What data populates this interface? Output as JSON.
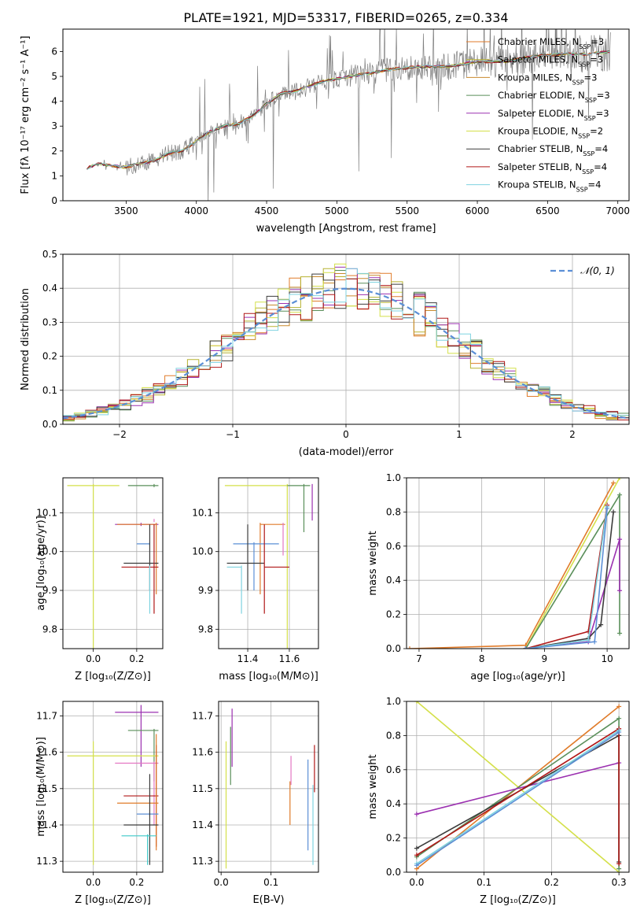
{
  "figure": {
    "title": "PLATE=1921, MJD=53317, FIBERID=0265, z=0.334",
    "series": [
      {
        "name": "Chabrier MILES",
        "nssp": "3",
        "color": "#e07b2a"
      },
      {
        "name": "Salpeter MILES",
        "nssp": "3",
        "color": "#b7b332"
      },
      {
        "name": "Kroupa MILES",
        "nssp": "3",
        "color": "#c98a2e"
      },
      {
        "name": "Chabrier ELODIE",
        "nssp": "3",
        "color": "#5a8f5a"
      },
      {
        "name": "Salpeter ELODIE",
        "nssp": "3",
        "color": "#9b30b0"
      },
      {
        "name": "Kroupa ELODIE",
        "nssp": "2",
        "color": "#d4e04a"
      },
      {
        "name": "Chabrier STELIB",
        "nssp": "4",
        "color": "#3c3c3c"
      },
      {
        "name": "Salpeter STELIB",
        "nssp": "4",
        "color": "#b01818"
      },
      {
        "name": "Kroupa STELIB",
        "nssp": "4",
        "color": "#7fd3e0"
      }
    ],
    "extra_colors": {
      "pink": "#e377c2",
      "blue": "#5b8fd6",
      "cyan": "#3ec9c9"
    }
  },
  "chart_data": [
    {
      "id": "spectrum",
      "type": "line",
      "xlabel": "wavelength [Angstrom, rest frame]",
      "ylabel": "Flux [fλ 10⁻¹⁷ erg cm⁻² s⁻¹ A⁻¹]",
      "xlim": [
        3050,
        7080
      ],
      "ylim": [
        0,
        6.9
      ],
      "xticks": [
        3500,
        4000,
        4500,
        5000,
        5500,
        6000,
        6500,
        7000
      ],
      "yticks": [
        0,
        1,
        2,
        3,
        4,
        5,
        6
      ],
      "data_color": "#808080",
      "model_x": [
        3220,
        3300,
        3400,
        3500,
        3600,
        3700,
        3800,
        3900,
        4000,
        4100,
        4200,
        4300,
        4400,
        4500,
        4600,
        4700,
        4800,
        4900,
        5000,
        5200,
        5400,
        5600,
        5800,
        6000,
        6200,
        6400,
        6600,
        6800,
        6950
      ],
      "model_y": [
        1.3,
        1.5,
        1.4,
        1.35,
        1.5,
        1.6,
        1.9,
        2.0,
        2.4,
        2.8,
        3.0,
        3.1,
        3.4,
        3.9,
        4.3,
        4.4,
        4.6,
        4.8,
        4.9,
        5.1,
        5.3,
        5.4,
        5.4,
        5.6,
        5.6,
        5.8,
        5.9,
        5.9,
        6.0
      ]
    },
    {
      "id": "residuals",
      "type": "line",
      "xlabel": "(data-model)/error",
      "ylabel": "Normed distribution",
      "xlim": [
        -2.5,
        2.5
      ],
      "ylim": [
        0,
        0.5
      ],
      "xticks": [
        -2,
        -1,
        0,
        1,
        2
      ],
      "xticklabels": [
        "−2",
        "−1",
        "0",
        "1",
        "2"
      ],
      "yticks": [
        0,
        0.1,
        0.2,
        0.3,
        0.4,
        0.5
      ],
      "yticklabels": [
        "0.0",
        "0.1",
        "0.2",
        "0.3",
        "0.4",
        "0.5"
      ],
      "gaussian": {
        "label": "𝒩(0, 1)",
        "color": "#5b8fd6",
        "mean": 0,
        "sigma": 1
      },
      "hist_bin_width": 0.1
    },
    {
      "id": "age-vs-Z",
      "type": "scatter",
      "xlabel": "Z [log₁₀(Z/Z⊙)]",
      "ylabel": "age  [log₁₀(age/yr)]",
      "xlim": [
        -0.14,
        0.32
      ],
      "ylim": [
        9.75,
        10.19
      ],
      "xticks": [
        0.0,
        0.2
      ],
      "xticklabels": [
        "0.0",
        "0.2"
      ],
      "yticks": [
        9.8,
        9.9,
        10.0,
        10.1
      ],
      "yticklabels": [
        "9.8",
        "9.9",
        "10.0",
        "10.1"
      ],
      "points": [
        {
          "color": "#d4e04a",
          "x": 0.0,
          "xerr": [
            0.12,
            0.12
          ],
          "y": 10.17,
          "yerr": [
            0.42,
            0.0
          ]
        },
        {
          "color": "#9b30b0",
          "x": 0.22,
          "xerr": [
            0.12,
            0.08
          ],
          "y": 10.07,
          "yerr": [
            0.0,
            0.0
          ]
        },
        {
          "color": "#e07b2a",
          "x": 0.29,
          "xerr": [
            0.18,
            0.0
          ],
          "y": 10.07,
          "yerr": [
            0.18,
            0.0
          ]
        },
        {
          "color": "#5b8fd6",
          "x": 0.26,
          "xerr": [
            0.06,
            0.0
          ],
          "y": 10.02,
          "yerr": [
            0.0,
            0.0
          ]
        },
        {
          "color": "#3c3c3c",
          "x": 0.26,
          "xerr": [
            0.12,
            0.04
          ],
          "y": 9.97,
          "yerr": [
            0.07,
            0.1
          ]
        },
        {
          "color": "#b01818",
          "x": 0.28,
          "xerr": [
            0.15,
            0.02
          ],
          "y": 9.96,
          "yerr": [
            0.12,
            0.11
          ]
        },
        {
          "color": "#5a8f5a",
          "x": 0.28,
          "xerr": [
            0.12,
            0.02
          ],
          "y": 10.17,
          "yerr": [
            0.0,
            0.0
          ]
        },
        {
          "color": "#7fd3e0",
          "x": 0.26,
          "xerr": [
            0.0,
            0.0
          ],
          "y": 9.96,
          "yerr": [
            0.12,
            0.0
          ]
        },
        {
          "color": "#e377c2",
          "x": 0.28,
          "xerr": [
            0.0,
            0.0
          ],
          "y": 10.08,
          "yerr": [
            0.0,
            0.0
          ]
        }
      ]
    },
    {
      "id": "age-vs-mass",
      "type": "scatter",
      "xlabel": "mass [log₁₀(M/M⊙)]",
      "ylabel": "",
      "xlim": [
        11.26,
        11.74
      ],
      "ylim": [
        9.75,
        10.19
      ],
      "xticks": [
        11.4,
        11.6
      ],
      "xticklabels": [
        "11.4",
        "11.6"
      ],
      "yticks": [
        9.8,
        9.9,
        10.0,
        10.1
      ],
      "yticklabels": [
        "9.8",
        "9.9",
        "10.0",
        "10.1"
      ],
      "points": [
        {
          "color": "#d4e04a",
          "x": 11.59,
          "xerr": [
            0.3,
            0.0
          ],
          "y": 10.17,
          "yerr": [
            0.42,
            0.0
          ]
        },
        {
          "color": "#9b30b0",
          "x": 11.71,
          "xerr": [
            0.0,
            0.0
          ],
          "y": 10.17,
          "yerr": [
            0.09,
            0.0
          ]
        },
        {
          "color": "#5a8f5a",
          "x": 11.67,
          "xerr": [
            0.08,
            0.03
          ],
          "y": 10.17,
          "yerr": [
            0.12,
            0.0
          ]
        },
        {
          "color": "#e07b2a",
          "x": 11.46,
          "xerr": [
            0.0,
            0.12
          ],
          "y": 10.07,
          "yerr": [
            0.18,
            0.0
          ]
        },
        {
          "color": "#5b8fd6",
          "x": 11.43,
          "xerr": [
            0.1,
            0.12
          ],
          "y": 10.02,
          "yerr": [
            0.12,
            0.0
          ]
        },
        {
          "color": "#3c3c3c",
          "x": 11.4,
          "xerr": [
            0.1,
            0.08
          ],
          "y": 9.97,
          "yerr": [
            0.07,
            0.1
          ]
        },
        {
          "color": "#b01818",
          "x": 11.48,
          "xerr": [
            0.0,
            0.12
          ],
          "y": 9.96,
          "yerr": [
            0.12,
            0.11
          ]
        },
        {
          "color": "#7fd3e0",
          "x": 11.37,
          "xerr": [
            0.07,
            0.0
          ],
          "y": 9.96,
          "yerr": [
            0.12,
            0.0
          ]
        },
        {
          "color": "#e377c2",
          "x": 11.57,
          "xerr": [
            0.0,
            0.0
          ],
          "y": 10.07,
          "yerr": [
            0.08,
            0.0
          ]
        }
      ]
    },
    {
      "id": "massweight-vs-age",
      "type": "line",
      "xlabel": "age  [log₁₀(age/yr)]",
      "ylabel": "mass weight",
      "xlim": [
        6.8,
        10.35
      ],
      "ylim": [
        0,
        1.0
      ],
      "xticks": [
        7,
        8,
        9,
        10
      ],
      "xticklabels": [
        "7",
        "8",
        "9",
        "10"
      ],
      "yticks": [
        0,
        0.2,
        0.4,
        0.6,
        0.8,
        1.0
      ],
      "yticklabels": [
        "0.0",
        "0.2",
        "0.4",
        "0.6",
        "0.8",
        "1.0"
      ],
      "lines": [
        {
          "color": "#e07b2a",
          "x": [
            6.85,
            8.7,
            10.1
          ],
          "y": [
            0.0,
            0.02,
            0.97
          ]
        },
        {
          "color": "#d4e04a",
          "x": [
            8.7,
            10.2
          ],
          "y": [
            0.0,
            1.0
          ]
        },
        {
          "color": "#5a8f5a",
          "x": [
            8.7,
            10.2,
            10.2
          ],
          "y": [
            0.0,
            0.9,
            0.09
          ]
        },
        {
          "color": "#9b30b0",
          "x": [
            8.7,
            9.7,
            10.2,
            10.2
          ],
          "y": [
            0.0,
            0.04,
            0.64,
            0.34
          ]
        },
        {
          "color": "#3c3c3c",
          "x": [
            8.7,
            9.7,
            9.9,
            10.1
          ],
          "y": [
            0.0,
            0.06,
            0.14,
            0.8
          ]
        },
        {
          "color": "#b01818",
          "x": [
            8.7,
            9.7,
            10.0
          ],
          "y": [
            0.0,
            0.1,
            0.84
          ]
        },
        {
          "color": "#7fd3e0",
          "x": [
            8.7,
            9.7,
            10.0
          ],
          "y": [
            0.0,
            0.05,
            0.83
          ]
        },
        {
          "color": "#5b8fd6",
          "x": [
            8.7,
            9.8,
            10.0
          ],
          "y": [
            0.0,
            0.04,
            0.82
          ]
        }
      ]
    },
    {
      "id": "mass-vs-Z",
      "type": "scatter",
      "xlabel": "Z [log₁₀(Z/Z⊙)]",
      "ylabel": "mass [log₁₀(M/M⊙)]",
      "xlim": [
        -0.14,
        0.32
      ],
      "ylim": [
        11.27,
        11.74
      ],
      "xticks": [
        0.0,
        0.2
      ],
      "xticklabels": [
        "0.0",
        "0.2"
      ],
      "yticks": [
        11.3,
        11.4,
        11.5,
        11.6,
        11.7
      ],
      "yticklabels": [
        "11.3",
        "11.4",
        "11.5",
        "11.6",
        "11.7"
      ],
      "points": [
        {
          "color": "#9b30b0",
          "x": 0.22,
          "xerr": [
            0.12,
            0.08
          ],
          "y": 11.71,
          "yerr": [
            0.15,
            0.02
          ]
        },
        {
          "color": "#5a8f5a",
          "x": 0.28,
          "xerr": [
            0.12,
            0.02
          ],
          "y": 11.66,
          "yerr": [
            0.14,
            0.0
          ]
        },
        {
          "color": "#d4e04a",
          "x": 0.0,
          "xerr": [
            0.12,
            0.3
          ],
          "y": 11.59,
          "yerr": [
            0.3,
            0.04
          ]
        },
        {
          "color": "#e377c2",
          "x": 0.28,
          "xerr": [
            0.18,
            0.02
          ],
          "y": 11.57,
          "yerr": [
            0.17,
            0.0
          ]
        },
        {
          "color": "#b01818",
          "x": 0.29,
          "xerr": [
            0.15,
            0.01
          ],
          "y": 11.48,
          "yerr": [
            0.14,
            0.14
          ]
        },
        {
          "color": "#e07b2a",
          "x": 0.29,
          "xerr": [
            0.18,
            0.01
          ],
          "y": 11.46,
          "yerr": [
            0.13,
            0.19
          ]
        },
        {
          "color": "#5b8fd6",
          "x": 0.26,
          "xerr": [
            0.06,
            0.04
          ],
          "y": 11.43,
          "yerr": [
            0.0,
            0.0
          ]
        },
        {
          "color": "#3c3c3c",
          "x": 0.26,
          "xerr": [
            0.12,
            0.04
          ],
          "y": 11.4,
          "yerr": [
            0.11,
            0.14
          ]
        },
        {
          "color": "#3ec9c9",
          "x": 0.25,
          "xerr": [
            0.12,
            0.04
          ],
          "y": 11.37,
          "yerr": [
            0.08,
            0.0
          ]
        }
      ]
    },
    {
      "id": "mass-vs-EBV",
      "type": "scatter",
      "xlabel": "E(B-V)",
      "ylabel": "",
      "xlim": [
        -0.005,
        0.195
      ],
      "ylim": [
        11.27,
        11.74
      ],
      "xticks": [
        0.0,
        0.1
      ],
      "xticklabels": [
        "0.0",
        "0.1"
      ],
      "yticks": [
        11.3,
        11.4,
        11.5,
        11.6,
        11.7
      ],
      "yticklabels": [
        "11.3",
        "11.4",
        "11.5",
        "11.6",
        "11.7"
      ],
      "points": [
        {
          "color": "#9b30b0",
          "x": 0.022,
          "xerr": [
            0,
            0
          ],
          "y": 11.67,
          "yerr": [
            0.11,
            0.05
          ]
        },
        {
          "color": "#5a8f5a",
          "x": 0.019,
          "xerr": [
            0,
            0
          ],
          "y": 11.6,
          "yerr": [
            0.09,
            0.07
          ]
        },
        {
          "color": "#d4e04a",
          "x": 0.01,
          "xerr": [
            0,
            0
          ],
          "y": 11.5,
          "yerr": [
            0.22,
            0.13
          ]
        },
        {
          "color": "#e377c2",
          "x": 0.14,
          "xerr": [
            0,
            0
          ],
          "y": 11.57,
          "yerr": [
            0.06,
            0.02
          ]
        },
        {
          "color": "#e07b2a",
          "x": 0.138,
          "xerr": [
            0,
            0
          ],
          "y": 11.46,
          "yerr": [
            0.06,
            0.06
          ]
        },
        {
          "color": "#5b8fd6",
          "x": 0.174,
          "xerr": [
            0,
            0
          ],
          "y": 11.45,
          "yerr": [
            0.12,
            0.13
          ]
        },
        {
          "color": "#b01818",
          "x": 0.187,
          "xerr": [
            0,
            0
          ],
          "y": 11.55,
          "yerr": [
            0.06,
            0.07
          ]
        },
        {
          "color": "#7fd3e0",
          "x": 0.184,
          "xerr": [
            0,
            0
          ],
          "y": 11.4,
          "yerr": [
            0.11,
            0.11
          ]
        }
      ]
    },
    {
      "id": "massweight-vs-Z",
      "type": "line",
      "xlabel": "Z [log₁₀(Z/Z⊙)]",
      "ylabel": "mass weight",
      "xlim": [
        -0.015,
        0.315
      ],
      "ylim": [
        0,
        1.0
      ],
      "xticks": [
        0.0,
        0.1,
        0.2,
        0.3
      ],
      "xticklabels": [
        "0.0",
        "0.1",
        "0.2",
        "0.3"
      ],
      "yticks": [
        0,
        0.2,
        0.4,
        0.6,
        0.8,
        1.0
      ],
      "yticklabels": [
        "0.0",
        "0.2",
        "0.4",
        "0.6",
        "0.8",
        "1.0"
      ],
      "lines": [
        {
          "color": "#d4e04a",
          "x": [
            0.0,
            0.3
          ],
          "y": [
            1.0,
            0.0
          ]
        },
        {
          "color": "#e07b2a",
          "x": [
            0.0,
            0.3
          ],
          "y": [
            0.02,
            0.97
          ]
        },
        {
          "color": "#5a8f5a",
          "x": [
            0.0,
            0.3,
            0.3
          ],
          "y": [
            0.09,
            0.9,
            0.02
          ]
        },
        {
          "color": "#9b30b0",
          "x": [
            0.0,
            0.3
          ],
          "y": [
            0.34,
            0.64
          ]
        },
        {
          "color": "#3c3c3c",
          "x": [
            0.0,
            0.3,
            0.3
          ],
          "y": [
            0.14,
            0.8,
            0.06
          ]
        },
        {
          "color": "#b01818",
          "x": [
            0.0,
            0.3,
            0.3
          ],
          "y": [
            0.1,
            0.84,
            0.05
          ]
        },
        {
          "color": "#7fd3e0",
          "x": [
            0.0,
            0.3
          ],
          "y": [
            0.05,
            0.83
          ]
        },
        {
          "color": "#5b8fd6",
          "x": [
            0.0,
            0.3
          ],
          "y": [
            0.04,
            0.82
          ]
        }
      ]
    }
  ]
}
